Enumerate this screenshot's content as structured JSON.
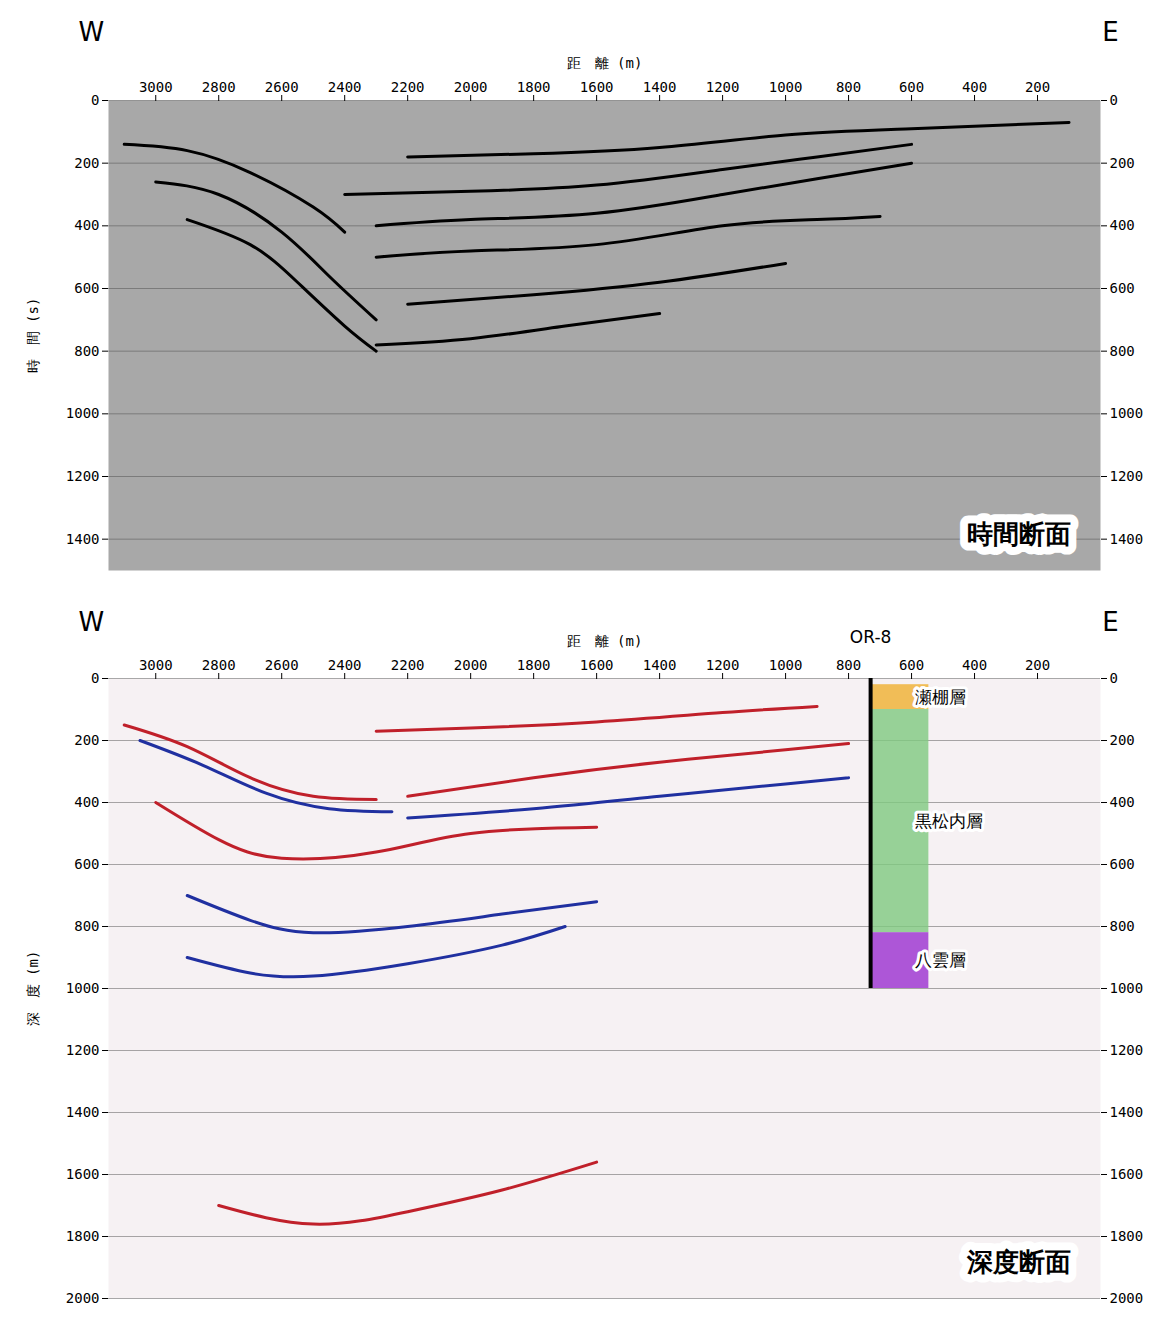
{
  "chart_data": [
    {
      "type": "seismic_section",
      "title": "時間断面",
      "direction_labels": {
        "left": "W",
        "right": "E"
      },
      "xlabel": "距　離 (m)",
      "ylabel": "時　間 (s)",
      "xlim": [
        3150,
        0
      ],
      "xticks": [
        3000,
        2800,
        2600,
        2400,
        2200,
        2000,
        1800,
        1600,
        1400,
        1200,
        1000,
        800,
        600,
        400,
        200
      ],
      "ylim": [
        0,
        1500
      ],
      "yticks": [
        0,
        200,
        400,
        600,
        800,
        1000,
        1200,
        1400
      ],
      "grid": true,
      "series": [
        {
          "color": "#000000",
          "x": [
            3100,
            2900,
            2700,
            2500,
            2400
          ],
          "y": [
            140,
            160,
            230,
            340,
            420
          ]
        },
        {
          "color": "#000000",
          "x": [
            3000,
            2800,
            2600,
            2450,
            2300
          ],
          "y": [
            260,
            300,
            420,
            560,
            700
          ]
        },
        {
          "color": "#000000",
          "x": [
            2900,
            2700,
            2550,
            2400,
            2300
          ],
          "y": [
            380,
            460,
            580,
            720,
            800
          ]
        },
        {
          "color": "#000000",
          "x": [
            2200,
            1800,
            1400,
            1000,
            600,
            100
          ],
          "y": [
            180,
            170,
            150,
            110,
            90,
            70
          ]
        },
        {
          "color": "#000000",
          "x": [
            2400,
            2000,
            1600,
            1200,
            900,
            600
          ],
          "y": [
            300,
            290,
            270,
            220,
            180,
            140
          ]
        },
        {
          "color": "#000000",
          "x": [
            2300,
            2000,
            1600,
            1200,
            900,
            600
          ],
          "y": [
            400,
            380,
            360,
            300,
            250,
            200
          ]
        },
        {
          "color": "#000000",
          "x": [
            2300,
            2000,
            1600,
            1200,
            900,
            700
          ],
          "y": [
            500,
            480,
            460,
            400,
            380,
            370
          ]
        },
        {
          "color": "#000000",
          "x": [
            2200,
            1800,
            1400,
            1000
          ],
          "y": [
            650,
            620,
            580,
            520
          ]
        },
        {
          "color": "#000000",
          "x": [
            2300,
            2000,
            1700,
            1400
          ],
          "y": [
            780,
            760,
            720,
            680
          ]
        }
      ]
    },
    {
      "type": "seismic_section",
      "title": "深度断面",
      "direction_labels": {
        "left": "W",
        "right": "E"
      },
      "xlabel": "距　離 (m)",
      "ylabel": "深　度 (m)",
      "xlim": [
        3150,
        0
      ],
      "xticks": [
        3000,
        2800,
        2600,
        2400,
        2200,
        2000,
        1800,
        1600,
        1400,
        1200,
        1000,
        800,
        600,
        400,
        200
      ],
      "ylim": [
        0,
        2000
      ],
      "yticks": [
        0,
        200,
        400,
        600,
        800,
        1000,
        1200,
        1400,
        1600,
        1800,
        2000
      ],
      "grid": true,
      "series": [
        {
          "color": "#c0202a",
          "x": [
            3100,
            2900,
            2700,
            2500,
            2300
          ],
          "y": [
            150,
            220,
            320,
            380,
            390
          ]
        },
        {
          "color": "#2030a0",
          "x": [
            3050,
            2850,
            2650,
            2450,
            2250
          ],
          "y": [
            200,
            280,
            370,
            420,
            430
          ]
        },
        {
          "color": "#c0202a",
          "x": [
            2300,
            2000,
            1600,
            1200,
            900
          ],
          "y": [
            170,
            160,
            140,
            110,
            90
          ]
        },
        {
          "color": "#c0202a",
          "x": [
            2200,
            1800,
            1400,
            1000,
            800
          ],
          "y": [
            380,
            320,
            270,
            230,
            210
          ]
        },
        {
          "color": "#2030a0",
          "x": [
            2200,
            1800,
            1400,
            1000,
            800
          ],
          "y": [
            450,
            420,
            380,
            340,
            320
          ]
        },
        {
          "color": "#c0202a",
          "x": [
            3000,
            2800,
            2600,
            2300,
            2000,
            1600
          ],
          "y": [
            400,
            520,
            580,
            560,
            500,
            480
          ]
        },
        {
          "color": "#2030a0",
          "x": [
            2900,
            2700,
            2500,
            2200,
            1900,
            1600
          ],
          "y": [
            700,
            780,
            820,
            800,
            760,
            720
          ]
        },
        {
          "color": "#2030a0",
          "x": [
            2900,
            2700,
            2500,
            2200,
            1900,
            1700
          ],
          "y": [
            900,
            950,
            960,
            920,
            860,
            800
          ]
        },
        {
          "color": "#c0202a",
          "x": [
            2800,
            2500,
            2200,
            1900,
            1600
          ],
          "y": [
            1700,
            1760,
            1720,
            1650,
            1560
          ]
        }
      ],
      "well": {
        "label": "OR-8",
        "x": [
          730,
          545
        ],
        "depth_range": [
          0,
          1000
        ],
        "layers": [
          {
            "name": "瀬棚層",
            "top": 20,
            "bottom": 100,
            "color": "#f0b030"
          },
          {
            "name": "黒松内層",
            "top": 100,
            "bottom": 820,
            "color": "#7fc97f"
          },
          {
            "name": "八雲層",
            "top": 820,
            "bottom": 1000,
            "color": "#9b30d0"
          }
        ]
      }
    }
  ]
}
